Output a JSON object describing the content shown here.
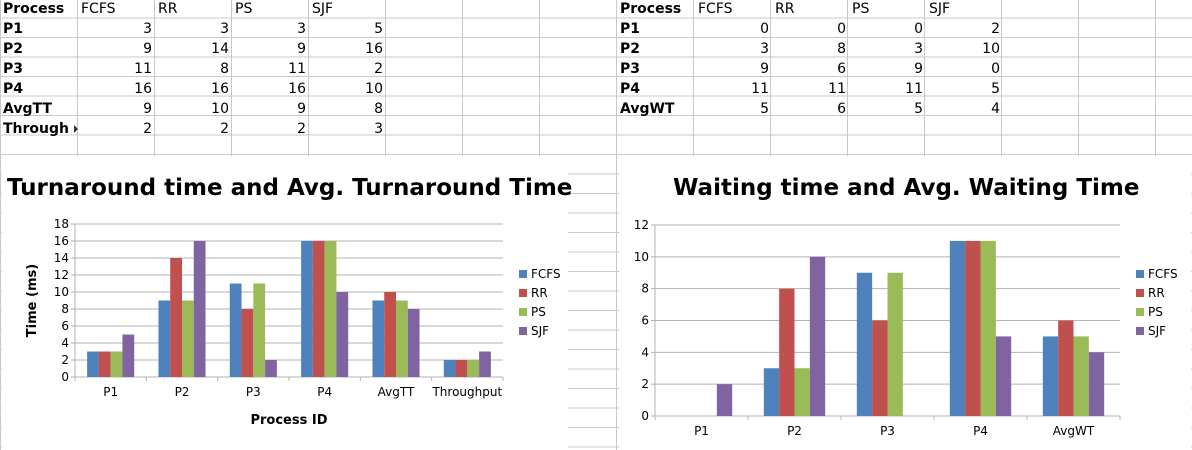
{
  "sheet1": {
    "headers": [
      "Process",
      "FCFS",
      "RR",
      "PS",
      "SJF"
    ],
    "rows": [
      {
        "label": "P1",
        "values": [
          "3",
          "3",
          "3",
          "5"
        ]
      },
      {
        "label": "P2",
        "values": [
          "9",
          "14",
          "9",
          "16"
        ]
      },
      {
        "label": "P3",
        "values": [
          "11",
          "8",
          "11",
          "2"
        ]
      },
      {
        "label": "P4",
        "values": [
          "16",
          "16",
          "16",
          "10"
        ]
      },
      {
        "label": "AvgTT",
        "values": [
          "9",
          "10",
          "9",
          "8"
        ]
      },
      {
        "label": "Through",
        "values": [
          "2",
          "2",
          "2",
          "3"
        ]
      }
    ]
  },
  "sheet2": {
    "headers": [
      "Process",
      "FCFS",
      "RR",
      "PS",
      "SJF"
    ],
    "rows": [
      {
        "label": "P1",
        "values": [
          "0",
          "0",
          "0",
          "2"
        ]
      },
      {
        "label": "P2",
        "values": [
          "3",
          "8",
          "3",
          "10"
        ]
      },
      {
        "label": "P3",
        "values": [
          "9",
          "6",
          "9",
          "0"
        ]
      },
      {
        "label": "P4",
        "values": [
          "11",
          "11",
          "11",
          "5"
        ]
      },
      {
        "label": "AvgWT",
        "values": [
          "5",
          "6",
          "5",
          "4"
        ]
      }
    ]
  },
  "colors": {
    "FCFS": "#4f81bd",
    "RR": "#c0504d",
    "PS": "#9bbb59",
    "SJF": "#8064a2"
  },
  "chart_data": [
    {
      "type": "bar",
      "title": "Turnaround time and Avg. Turnaround Time",
      "xlabel": "Process ID",
      "ylabel": "Time (ms)",
      "ylim": [
        0,
        18
      ],
      "yticks": [
        0,
        2,
        4,
        6,
        8,
        10,
        12,
        14,
        16,
        18
      ],
      "categories": [
        "P1",
        "P2",
        "P3",
        "P4",
        "AvgTT",
        "Throughput"
      ],
      "series": [
        {
          "name": "FCFS",
          "values": [
            3,
            9,
            11,
            16,
            9,
            2
          ]
        },
        {
          "name": "RR",
          "values": [
            3,
            14,
            8,
            16,
            10,
            2
          ]
        },
        {
          "name": "PS",
          "values": [
            3,
            9,
            11,
            16,
            9,
            2
          ]
        },
        {
          "name": "SJF",
          "values": [
            5,
            16,
            2,
            10,
            8,
            3
          ]
        }
      ],
      "grid": true,
      "legend": "right"
    },
    {
      "type": "bar",
      "title": "Waiting time and Avg. Waiting Time",
      "xlabel": "",
      "ylabel": "",
      "ylim": [
        0,
        12
      ],
      "yticks": [
        0,
        2,
        4,
        6,
        8,
        10,
        12
      ],
      "categories": [
        "P1",
        "P2",
        "P3",
        "P4",
        "AvgWT"
      ],
      "series": [
        {
          "name": "FCFS",
          "values": [
            0,
            3,
            9,
            11,
            5
          ]
        },
        {
          "name": "RR",
          "values": [
            0,
            8,
            6,
            11,
            6
          ]
        },
        {
          "name": "PS",
          "values": [
            0,
            3,
            9,
            11,
            5
          ]
        },
        {
          "name": "SJF",
          "values": [
            2,
            10,
            0,
            5,
            4
          ]
        }
      ],
      "grid": true,
      "legend": "right"
    }
  ]
}
